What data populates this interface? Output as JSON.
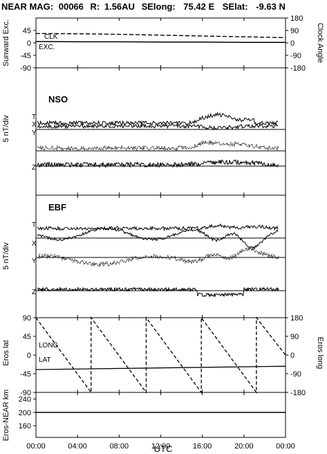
{
  "title": {
    "mission": "NEAR MAG:",
    "day": "00066",
    "r_label": "R:",
    "r_value": "1.56AU",
    "selong_label": "SElong:",
    "selong_value": "75.42 E",
    "selat_label": "SElat:",
    "selat_value": "-9.63 N"
  },
  "chart_data": [
    {
      "type": "line",
      "panel": "angles",
      "ylabel_left": "Sunward Exc.",
      "ylabel_right": "Clock Angle",
      "yticks_left": [
        "45",
        "0",
        "-45",
        "-90"
      ],
      "yticks_right": [
        "180",
        "90",
        "0",
        "-90",
        "-180"
      ],
      "ylim_left": [
        -90,
        90
      ],
      "ylim_right": [
        -180,
        180
      ],
      "series": [
        {
          "name": "CLK",
          "style": "dashed",
          "x": [
            0,
            4,
            8,
            12,
            16,
            20,
            24
          ],
          "y": [
            34,
            33,
            31,
            28,
            25,
            22,
            19
          ]
        },
        {
          "name": "EXC.",
          "style": "solid",
          "x": [
            0,
            4,
            8,
            12,
            16,
            20,
            24
          ],
          "y": [
            5,
            4,
            4,
            3,
            3,
            2,
            2
          ]
        }
      ]
    },
    {
      "type": "line",
      "panel": "NSO",
      "label": "NSO",
      "ylabel": "5 nT/div",
      "traces": [
        "T",
        "X",
        "Y",
        "Z"
      ]
    },
    {
      "type": "line",
      "panel": "EBF",
      "label": "EBF",
      "ylabel": "5 nT/div",
      "traces": [
        "T",
        "X",
        "Y",
        "Z"
      ]
    },
    {
      "type": "line",
      "panel": "eros",
      "ylabel_left": "Eros lat",
      "ylabel_right": "Eros long",
      "yticks_left": [
        "90",
        "45",
        "0",
        "-45",
        "-90"
      ],
      "yticks_right": [
        "180",
        "90",
        "0",
        "-90",
        "-180"
      ],
      "ylim_left": [
        -90,
        90
      ],
      "ylim_right": [
        -180,
        180
      ],
      "series": [
        {
          "name": "LONG",
          "style": "dashed",
          "x": [
            0,
            5.3,
            5.3,
            10.6,
            10.6,
            15.9,
            15.9,
            21.2,
            21.2,
            24
          ],
          "y": [
            180,
            -180,
            180,
            -180,
            180,
            -180,
            180,
            -180,
            180,
            0
          ]
        },
        {
          "name": "LAT",
          "style": "solid",
          "x": [
            0,
            24
          ],
          "y": [
            -35,
            -27
          ]
        }
      ]
    },
    {
      "type": "line",
      "panel": "range",
      "ylabel": "Eros-NEAR km",
      "yticks": [
        "240",
        "200",
        "160"
      ],
      "ylim": [
        125,
        260
      ],
      "series": [
        {
          "name": "",
          "style": "solid",
          "x": [
            0,
            24
          ],
          "y": [
            200,
            200
          ]
        }
      ]
    }
  ],
  "xaxis": {
    "label": "UTC",
    "ticks": [
      "00:00",
      "04:00",
      "08:00",
      "12:00",
      "16:00",
      "20:00",
      "00:00"
    ]
  }
}
